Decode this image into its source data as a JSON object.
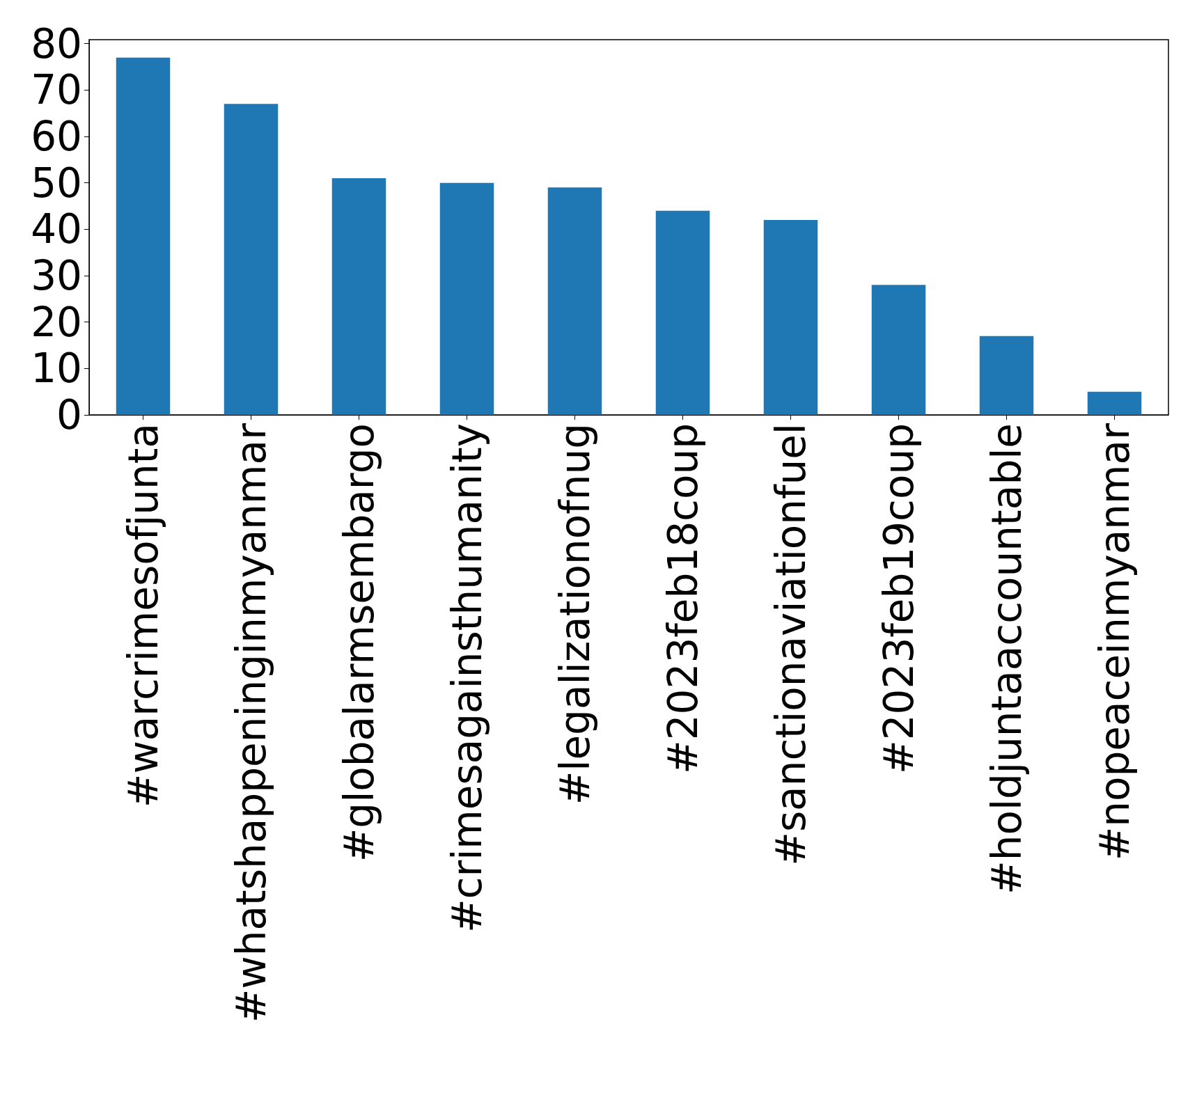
{
  "chart_data": {
    "type": "bar",
    "categories": [
      "#warcrimesofjunta",
      "#whatshappeninginmyanmar",
      "#globalarmsembargo",
      "#crimesagainsthumanity",
      "#legalizationofnug",
      "#2023feb18coup",
      "#sanctionaviationfuel",
      "#2023feb19coup",
      "#holdjuntaaccountable",
      "#nopeaceinmyanmar"
    ],
    "values": [
      77,
      67,
      51,
      50,
      49,
      44,
      42,
      28,
      17,
      5
    ],
    "color": "#1f77b4",
    "ylim": [
      0,
      80.85
    ],
    "yticks": [
      0,
      10,
      20,
      30,
      40,
      50,
      60,
      70,
      80
    ],
    "grid": false
  }
}
